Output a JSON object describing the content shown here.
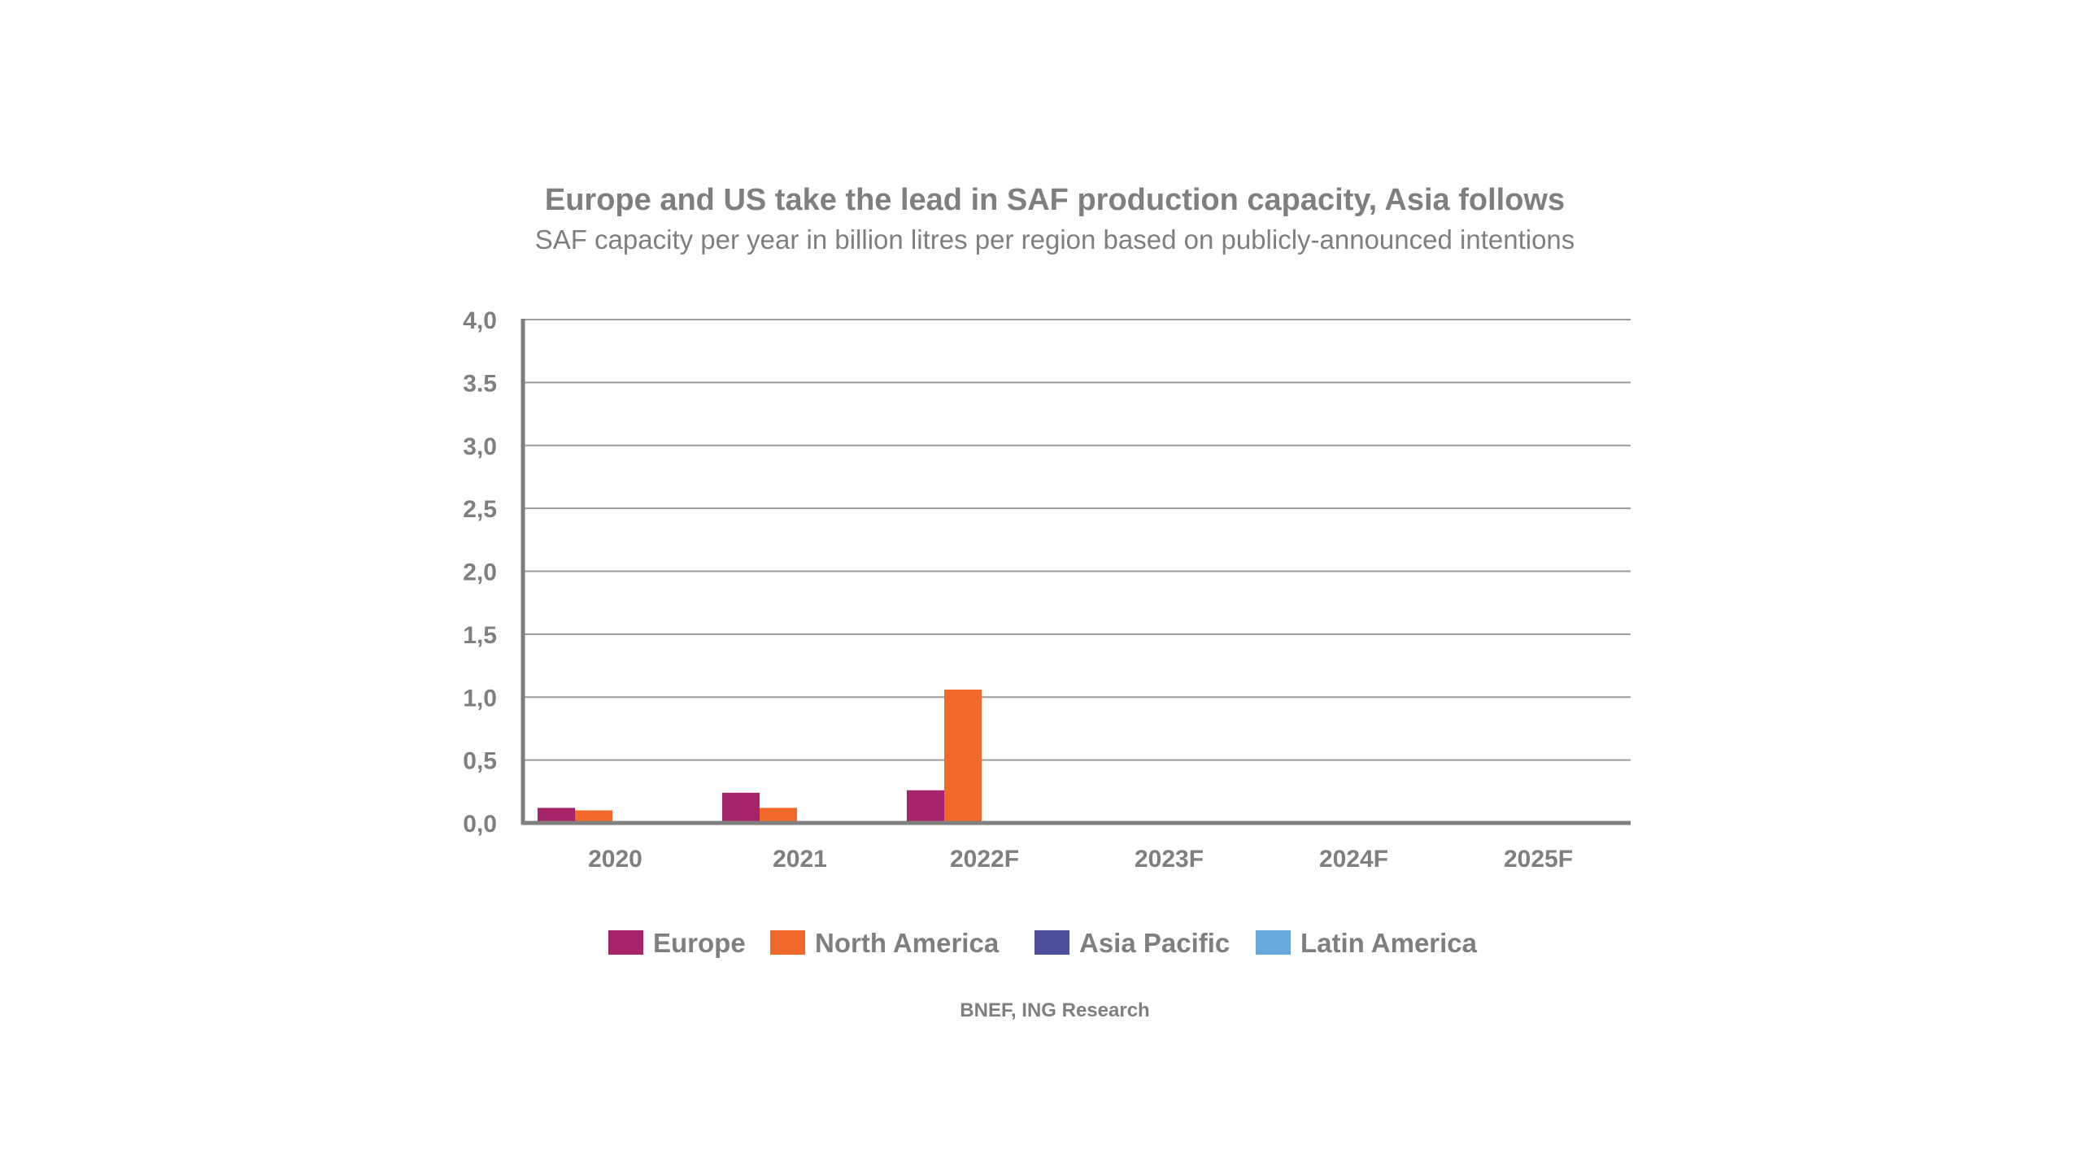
{
  "chart_data": {
    "type": "bar",
    "title": "Europe and US take the lead in SAF production capacity, Asia follows",
    "subtitle": "SAF capacity per year in billion litres per region based on publicly-announced intentions",
    "xlabel": "",
    "ylabel": "",
    "categories": [
      "2020",
      "2021",
      "2022F",
      "2023F",
      "2024F",
      "2025F"
    ],
    "ylim": [
      0,
      4
    ],
    "y_ticks": [
      {
        "value": 0,
        "label": "0,0"
      },
      {
        "value": 0.5,
        "label": "0,5"
      },
      {
        "value": 1,
        "label": "1,0"
      },
      {
        "value": 1.5,
        "label": "1,5"
      },
      {
        "value": 2,
        "label": "2,0"
      },
      {
        "value": 2.5,
        "label": "2,5"
      },
      {
        "value": 3,
        "label": "3,0"
      },
      {
        "value": 3.5,
        "label": "3.5"
      },
      {
        "value": 4,
        "label": "4,0"
      }
    ],
    "grid": true,
    "legend_position": "bottom",
    "series": [
      {
        "name": "Europe",
        "color": "#a6246a",
        "values": [
          0.12,
          0.24,
          0.26,
          0,
          0,
          0
        ]
      },
      {
        "name": "North America",
        "color": "#f0692a",
        "values": [
          0.1,
          0.12,
          1.06,
          0,
          0,
          0
        ]
      },
      {
        "name": "Asia Pacific",
        "color": "#4e4f9b",
        "values": [
          0,
          0,
          0,
          0,
          0,
          0
        ]
      },
      {
        "name": "Latin America",
        "color": "#67a9dc",
        "values": [
          0,
          0,
          0,
          0,
          0,
          0
        ]
      }
    ],
    "source": "BNEF, ING Research"
  }
}
